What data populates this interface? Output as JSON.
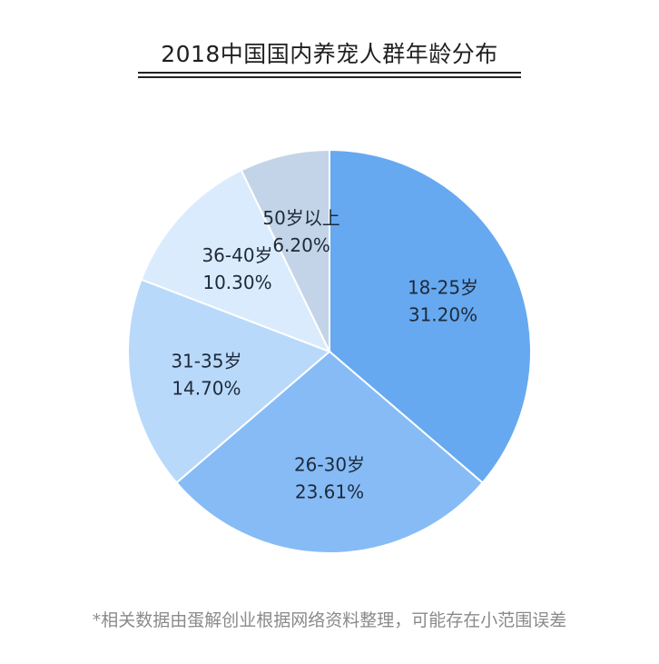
{
  "chart_data": {
    "type": "pie",
    "title": "2018中国国内养宠人群年龄分布",
    "slices": [
      {
        "label": "18-25岁",
        "value": 31.2,
        "display": "31.20%",
        "color": "#66a9f0"
      },
      {
        "label": "26-30岁",
        "value": 23.61,
        "display": "23.61%",
        "color": "#86bbf6"
      },
      {
        "label": "31-35岁",
        "value": 14.7,
        "display": "14.70%",
        "color": "#b9d9fb"
      },
      {
        "label": "36-40岁",
        "value": 10.3,
        "display": "10.30%",
        "color": "#daebfd"
      },
      {
        "label": "50岁以上",
        "value": 6.2,
        "display": "6.20%",
        "color": "#c4d4e8"
      }
    ],
    "start_angle": "12 o'clock",
    "direction": "clockwise"
  },
  "footnote": "*相关数据由蛋解创业根据网络资料整理，可能存在小范围误差"
}
